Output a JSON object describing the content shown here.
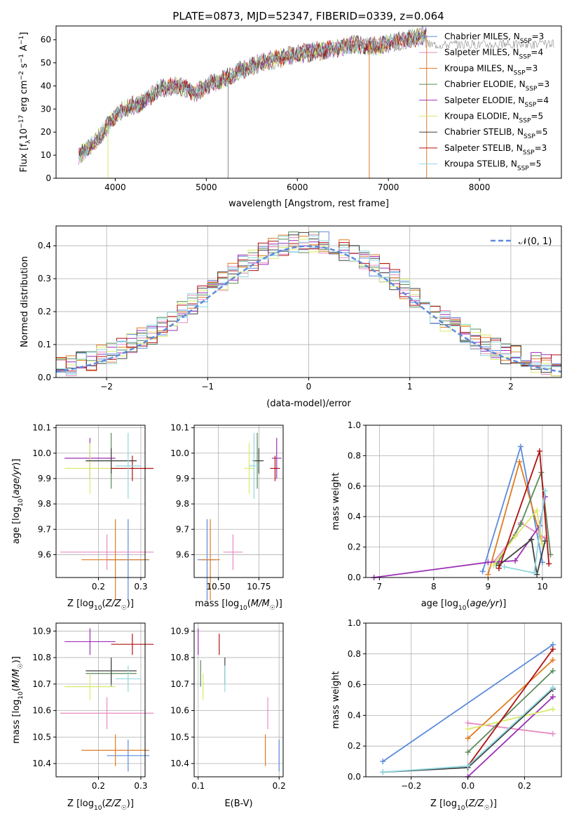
{
  "figure_title": "PLATE=0873, MJD=52347, FIBERID=0339, z=0.064",
  "colors": {
    "Chabrier MILES": "#5b8bdc",
    "Salpeter MILES": "#e88bc0",
    "Kroupa MILES": "#e07b1f",
    "Chabrier ELODIE": "#5a8a5a",
    "Salpeter ELODIE": "#9b2fb5",
    "Kroupa ELODIE": "#d9ea6a",
    "Chabrier STELIB": "#404040",
    "Salpeter STELIB": "#b01010",
    "Kroupa STELIB": "#8fd8e0",
    "data": "#888888",
    "normal": "#5b8bdc",
    "grid": "#b0b0b0"
  },
  "chart_data": [
    {
      "id": "spectrum",
      "type": "line",
      "title": "PLATE=0873, MJD=52347, FIBERID=0339, z=0.064",
      "xlabel": "wavelength [Angstrom, rest frame]",
      "ylabel_parts": [
        "Flux [f",
        "λ",
        "10",
        "−17",
        " erg cm",
        "−2",
        " s",
        "−1",
        " A",
        "−1",
        "]"
      ],
      "xlim": [
        3350,
        8900
      ],
      "ylim": [
        0,
        66
      ],
      "xticks": [
        4000,
        5000,
        6000,
        7000,
        8000
      ],
      "yticks": [
        0,
        10,
        20,
        30,
        40,
        50,
        60
      ],
      "grid": false,
      "legend_position": "right",
      "legend": [
        {
          "model": "Chabrier MILES",
          "nssp": "3"
        },
        {
          "model": "Salpeter MILES",
          "nssp": "4"
        },
        {
          "model": "Kroupa MILES",
          "nssp": "3"
        },
        {
          "model": "Chabrier ELODIE",
          "nssp": "3"
        },
        {
          "model": "Salpeter ELODIE",
          "nssp": "4"
        },
        {
          "model": "Kroupa ELODIE",
          "nssp": "5"
        },
        {
          "model": "Chabrier STELIB",
          "nssp": "5"
        },
        {
          "model": "Salpeter STELIB",
          "nssp": "3"
        },
        {
          "model": "Kroupa STELIB",
          "nssp": "5"
        }
      ],
      "continuum": {
        "x": [
          3600,
          3700,
          3800,
          3900,
          4000,
          4100,
          4300,
          4500,
          4700,
          4900,
          5000,
          5200,
          5400,
          5600,
          5800,
          6000,
          6200,
          6400,
          6600,
          6800,
          7000,
          7200,
          7400
        ],
        "y": [
          10,
          13,
          17,
          22,
          27,
          30,
          33,
          39,
          40,
          37,
          40,
          43,
          47,
          50,
          52,
          54,
          55,
          56,
          58,
          57,
          58,
          60,
          62
        ]
      },
      "spikes": [
        {
          "x": 3920,
          "y": 0,
          "series": "Kroupa ELODIE"
        },
        {
          "x": 5240,
          "y": 0,
          "series": "data"
        },
        {
          "x": 6790,
          "y": 0,
          "series": "Kroupa MILES"
        },
        {
          "x": 7420,
          "y": 0,
          "series": "Kroupa MILES"
        }
      ]
    },
    {
      "id": "residuals",
      "type": "bar",
      "xlabel": "(data-model)/error",
      "ylabel": "Normed distribution",
      "xlim": [
        -2.5,
        2.5
      ],
      "ylim": [
        0,
        0.46
      ],
      "xticks": [
        -2,
        -1,
        0,
        1,
        2
      ],
      "yticks": [
        0.0,
        0.1,
        0.2,
        0.3,
        0.4
      ],
      "grid": true,
      "legend_position": "top-right",
      "legend": [
        "𝒩(0, 1)"
      ],
      "bin_width": 0.1
    },
    {
      "id": "age-vs-Z",
      "type": "scatter",
      "xlabel": "Z [log10(Z/Z☉)]",
      "ylabel": "age  [log10(age/yr)]",
      "xlim": [
        0.1,
        0.31
      ],
      "ylim": [
        9.51,
        10.11
      ],
      "xticks": [
        0.2,
        0.3
      ],
      "yticks": [
        9.6,
        9.7,
        9.8,
        9.9,
        10.0,
        10.1
      ],
      "grid": true,
      "points": [
        {
          "series": "Chabrier MILES",
          "x": 0.27,
          "y": 9.58,
          "xerr": 0.05,
          "yerr": 0.16
        },
        {
          "series": "Salpeter MILES",
          "x": 0.22,
          "y": 9.61,
          "xerr": 0.11,
          "yerr": 0.07
        },
        {
          "series": "Kroupa MILES",
          "x": 0.24,
          "y": 9.58,
          "xerr": 0.08,
          "yerr": 0.16
        },
        {
          "series": "Chabrier ELODIE",
          "x": 0.23,
          "y": 9.97,
          "xerr": 0.06,
          "yerr": 0.11
        },
        {
          "series": "Salpeter ELODIE",
          "x": 0.18,
          "y": 9.98,
          "xerr": 0.06,
          "yerr": 0.08
        },
        {
          "series": "Kroupa ELODIE",
          "x": 0.18,
          "y": 9.94,
          "xerr": 0.06,
          "yerr": 0.1
        },
        {
          "series": "Chabrier STELIB",
          "x": 0.23,
          "y": 9.97,
          "xerr": 0.06,
          "yerr": 0.05
        },
        {
          "series": "Salpeter STELIB",
          "x": 0.28,
          "y": 9.94,
          "xerr": 0.05,
          "yerr": 0.05
        },
        {
          "series": "Kroupa STELIB",
          "x": 0.27,
          "y": 9.95,
          "xerr": 0.03,
          "yerr": 0.13
        }
      ]
    },
    {
      "id": "age-vs-mass",
      "type": "scatter",
      "xlabel": "mass [log10(M/M☉)]",
      "xlim": [
        10.35,
        10.9
      ],
      "ylim": [
        9.51,
        10.11
      ],
      "xticks": [
        10.5,
        10.75
      ],
      "yticks": [
        9.6,
        9.7,
        9.8,
        9.9,
        10.0,
        10.1
      ],
      "grid": true,
      "points": [
        {
          "series": "Chabrier MILES",
          "x": 10.43,
          "y": 9.58,
          "xerr": 0.06,
          "yerr": 0.16
        },
        {
          "series": "Salpeter MILES",
          "x": 10.59,
          "y": 9.61,
          "xerr": 0.06,
          "yerr": 0.07
        },
        {
          "series": "Kroupa MILES",
          "x": 10.45,
          "y": 9.58,
          "xerr": 0.06,
          "yerr": 0.16
        },
        {
          "series": "Chabrier ELODIE",
          "x": 10.74,
          "y": 9.97,
          "xerr": 0.03,
          "yerr": 0.11
        },
        {
          "series": "Salpeter ELODIE",
          "x": 10.86,
          "y": 9.98,
          "xerr": 0.03,
          "yerr": 0.08
        },
        {
          "series": "Kroupa ELODIE",
          "x": 10.69,
          "y": 9.94,
          "xerr": 0.03,
          "yerr": 0.1
        },
        {
          "series": "Chabrier STELIB",
          "x": 10.75,
          "y": 9.97,
          "xerr": 0.03,
          "yerr": 0.05
        },
        {
          "series": "Salpeter STELIB",
          "x": 10.85,
          "y": 9.94,
          "xerr": 0.03,
          "yerr": 0.05
        },
        {
          "series": "Kroupa STELIB",
          "x": 10.72,
          "y": 9.95,
          "xerr": 0.03,
          "yerr": 0.13
        }
      ]
    },
    {
      "id": "weight-vs-age",
      "type": "line",
      "xlabel": "age  [log10(age/yr)]",
      "ylabel": "mass weight",
      "xlim": [
        6.75,
        10.35
      ],
      "ylim": [
        0,
        1
      ],
      "xticks": [
        7,
        8,
        9,
        10
      ],
      "yticks": [
        0.0,
        0.2,
        0.4,
        0.6,
        0.8,
        1.0
      ],
      "grid": true,
      "series": [
        {
          "name": "Chabrier MILES",
          "x": [
            8.9,
            9.6,
            10.0
          ],
          "y": [
            0.04,
            0.86,
            0.1
          ]
        },
        {
          "name": "Salpeter MILES",
          "x": [
            9.1,
            9.5,
            9.6,
            10.05
          ],
          "y": [
            0.1,
            0.28,
            0.36,
            0.26
          ]
        },
        {
          "name": "Kroupa MILES",
          "x": [
            9.0,
            9.58,
            10.0
          ],
          "y": [
            0.02,
            0.76,
            0.22
          ]
        },
        {
          "name": "Chabrier ELODIE",
          "x": [
            9.15,
            9.6,
            9.98,
            10.15
          ],
          "y": [
            0.08,
            0.35,
            0.69,
            0.15
          ]
        },
        {
          "name": "Salpeter ELODIE",
          "x": [
            6.9,
            9.0,
            9.5,
            9.95,
            10.05
          ],
          "y": [
            0.0,
            0.1,
            0.11,
            0.34,
            0.53
          ]
        },
        {
          "name": "Kroupa ELODIE",
          "x": [
            9.1,
            9.5,
            9.9,
            10.0
          ],
          "y": [
            0.08,
            0.27,
            0.44,
            0.22
          ]
        },
        {
          "name": "Chabrier STELIB",
          "x": [
            9.2,
            9.8,
            9.9,
            10.05
          ],
          "y": [
            0.08,
            0.25,
            0.02,
            0.24
          ]
        },
        {
          "name": "Salpeter STELIB",
          "x": [
            9.2,
            9.95,
            10.12
          ],
          "y": [
            0.06,
            0.83,
            0.09
          ]
        },
        {
          "name": "Kroupa STELIB",
          "x": [
            9.3,
            9.85,
            10.05
          ],
          "y": [
            0.07,
            0.03,
            0.57
          ]
        }
      ]
    },
    {
      "id": "mass-vs-Z",
      "type": "scatter",
      "xlabel": "Z [log10(Z/Z☉)]",
      "ylabel": "mass [log10(M/M☉)]",
      "xlim": [
        0.1,
        0.31
      ],
      "ylim": [
        10.35,
        10.93
      ],
      "xticks": [
        0.2,
        0.3
      ],
      "yticks": [
        10.4,
        10.5,
        10.6,
        10.7,
        10.8,
        10.9
      ],
      "grid": true,
      "points": [
        {
          "series": "Chabrier MILES",
          "x": 0.27,
          "y": 10.43,
          "xerr": 0.05,
          "yerr": 0.06
        },
        {
          "series": "Salpeter MILES",
          "x": 0.22,
          "y": 10.59,
          "xerr": 0.11,
          "yerr": 0.06
        },
        {
          "series": "Kroupa MILES",
          "x": 0.24,
          "y": 10.45,
          "xerr": 0.08,
          "yerr": 0.06
        },
        {
          "series": "Chabrier ELODIE",
          "x": 0.23,
          "y": 10.74,
          "xerr": 0.06,
          "yerr": 0.05
        },
        {
          "series": "Salpeter ELODIE",
          "x": 0.18,
          "y": 10.86,
          "xerr": 0.06,
          "yerr": 0.05
        },
        {
          "series": "Kroupa ELODIE",
          "x": 0.18,
          "y": 10.69,
          "xerr": 0.06,
          "yerr": 0.05
        },
        {
          "series": "Chabrier STELIB",
          "x": 0.23,
          "y": 10.75,
          "xerr": 0.06,
          "yerr": 0.05
        },
        {
          "series": "Salpeter STELIB",
          "x": 0.28,
          "y": 10.85,
          "xerr": 0.05,
          "yerr": 0.04
        },
        {
          "series": "Kroupa STELIB",
          "x": 0.27,
          "y": 10.72,
          "xerr": 0.03,
          "yerr": 0.05
        }
      ]
    },
    {
      "id": "mass-vs-ebv",
      "type": "scatter",
      "xlabel": "E(B-V)",
      "xlim": [
        0.095,
        0.205
      ],
      "ylim": [
        10.35,
        10.93
      ],
      "xticks": [
        0.1,
        0.2
      ],
      "yticks": [
        10.4,
        10.5,
        10.6,
        10.7,
        10.8,
        10.9
      ],
      "grid": true,
      "points": [
        {
          "series": "Chabrier MILES",
          "x": 0.2,
          "y": 10.43,
          "yerr": 0.06
        },
        {
          "series": "Salpeter MILES",
          "x": 0.186,
          "y": 10.59,
          "yerr": 0.06
        },
        {
          "series": "Kroupa MILES",
          "x": 0.183,
          "y": 10.45,
          "yerr": 0.06
        },
        {
          "series": "Chabrier ELODIE",
          "x": 0.103,
          "y": 10.74,
          "yerr": 0.05
        },
        {
          "series": "Salpeter ELODIE",
          "x": 0.1,
          "y": 10.86,
          "yerr": 0.05
        },
        {
          "series": "Kroupa ELODIE",
          "x": 0.106,
          "y": 10.69,
          "yerr": 0.05
        },
        {
          "series": "Chabrier STELIB",
          "x": 0.133,
          "y": 10.75,
          "yerr": 0.05
        },
        {
          "series": "Salpeter STELIB",
          "x": 0.126,
          "y": 10.85,
          "yerr": 0.04
        },
        {
          "series": "Kroupa STELIB",
          "x": 0.133,
          "y": 10.72,
          "yerr": 0.05
        }
      ]
    },
    {
      "id": "weight-vs-Z",
      "type": "line",
      "xlabel": "Z [log10(Z/Z☉)]",
      "ylabel": "mass weight",
      "xlim": [
        -0.36,
        0.33
      ],
      "ylim": [
        0,
        1
      ],
      "xticks": [
        -0.2,
        0.0,
        0.2
      ],
      "yticks": [
        0.0,
        0.2,
        0.4,
        0.6,
        0.8,
        1.0
      ],
      "grid": true,
      "series": [
        {
          "name": "Chabrier MILES",
          "x": [
            -0.3,
            0.3
          ],
          "y": [
            0.1,
            0.86
          ]
        },
        {
          "name": "Salpeter MILES",
          "x": [
            0.0,
            0.3
          ],
          "y": [
            0.35,
            0.28
          ]
        },
        {
          "name": "Kroupa MILES",
          "x": [
            0.0,
            0.3
          ],
          "y": [
            0.25,
            0.76
          ]
        },
        {
          "name": "Chabrier ELODIE",
          "x": [
            0.0,
            0.3
          ],
          "y": [
            0.16,
            0.69
          ]
        },
        {
          "name": "Salpeter ELODIE",
          "x": [
            0.0,
            0.3
          ],
          "y": [
            0.0,
            0.52
          ]
        },
        {
          "name": "Kroupa ELODIE",
          "x": [
            0.0,
            0.3
          ],
          "y": [
            0.31,
            0.44
          ]
        },
        {
          "name": "Chabrier STELIB",
          "x": [
            -0.3,
            0.0,
            0.3
          ],
          "y": [
            0.03,
            0.06,
            0.57
          ]
        },
        {
          "name": "Salpeter STELIB",
          "x": [
            0.0,
            0.3
          ],
          "y": [
            0.07,
            0.83
          ]
        },
        {
          "name": "Kroupa STELIB",
          "x": [
            -0.3,
            0.0,
            0.3
          ],
          "y": [
            0.03,
            0.07,
            0.58
          ]
        }
      ]
    }
  ]
}
